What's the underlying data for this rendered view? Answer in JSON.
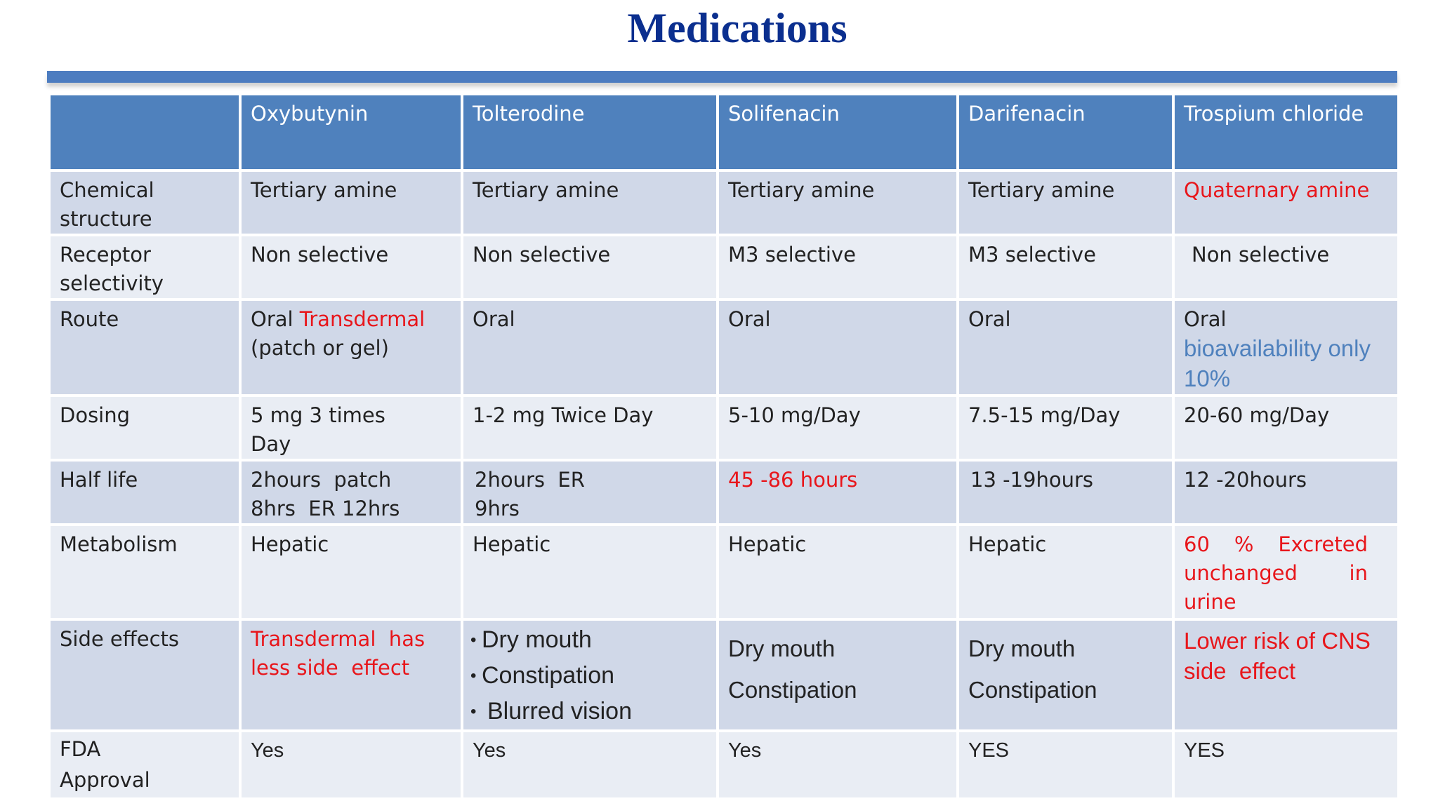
{
  "title": "Medications",
  "columns": [
    "",
    "Oxybutynin",
    "Tolterodine",
    "Solifenacin",
    "Darifenacin",
    "Trospium chloride"
  ],
  "rows": {
    "chemical_structure": {
      "label": "Chemical structure",
      "oxybutynin": "Tertiary amine",
      "tolterodine": "Tertiary amine",
      "solifenacin": "Tertiary amine",
      "darifenacin": "Tertiary amine",
      "trospium": "Quaternary amine"
    },
    "receptor_selectivity": {
      "label": "Receptor selectivity",
      "oxybutynin": "Non selective",
      "tolterodine": "Non selective",
      "solifenacin": "M3 selective",
      "darifenacin": "M3 selective",
      "trospium": "Non selective"
    },
    "route": {
      "label": "Route",
      "oxybutynin_a": "Oral",
      "oxybutynin_b": "Transdermal",
      "oxybutynin_c": "(patch or gel)",
      "tolterodine": "Oral",
      "solifenacin": "Oral",
      "darifenacin": "Oral",
      "trospium_a": "Oral",
      "trospium_b": "bioavailability only 10%"
    },
    "dosing": {
      "label": "Dosing",
      "oxybutynin": "5 mg 3 times Day",
      "tolterodine": "1-2 mg Twice Day",
      "solifenacin": "5-10 mg/Day",
      "darifenacin": "7.5-15 mg/Day",
      "trospium": "20-60 mg/Day"
    },
    "half_life": {
      "label": "Half life",
      "oxybutynin": "2hours  patch 8hrs  ER 12hrs",
      "tolterodine": "2hours  ER 9hrs",
      "solifenacin": "45 -86 hours",
      "darifenacin": "13 -19hours",
      "trospium": "12 -20hours"
    },
    "metabolism": {
      "label": "Metabolism",
      "oxybutynin": "Hepatic",
      "tolterodine": "Hepatic",
      "solifenacin": "Hepatic",
      "darifenacin": "Hepatic",
      "trospium": "60 % Excreted unchanged in urine"
    },
    "side_effects": {
      "label": "Side effects",
      "oxybutynin": "Transdermal  has less side  effect",
      "tolterodine": [
        "Dry mouth",
        "Constipation",
        "Blurred vision"
      ],
      "solifenacin_a": "Dry mouth",
      "solifenacin_b": "Constipation",
      "darifenacin_a": "Dry mouth",
      "darifenacin_b": "Constipation",
      "trospium": "Lower risk of CNS side  effect"
    },
    "fda_approval": {
      "label": "FDA Approval",
      "oxybutynin": "Yes",
      "tolterodine": "Yes",
      "solifenacin": "Yes",
      "darifenacin": "YES",
      "trospium": "YES"
    }
  },
  "colors": {
    "title": "#0b2f8f",
    "header_bg": "#4f81bd",
    "row_odd": "#d0d8e8",
    "row_even": "#e9edf4",
    "highlight_red": "#e8161b",
    "highlight_blue": "#4f81bd"
  }
}
